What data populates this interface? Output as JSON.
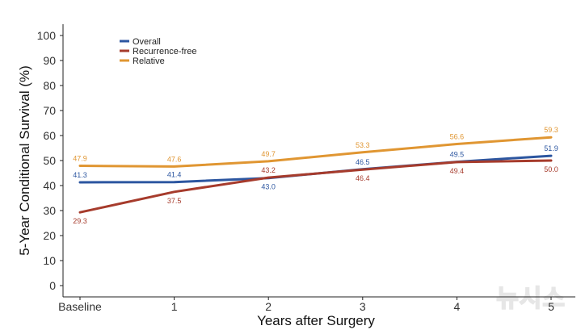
{
  "chart_data": {
    "type": "line",
    "categories": [
      "Baseline",
      "1",
      "2",
      "3",
      "4",
      "5"
    ],
    "series": [
      {
        "name": "Overall",
        "values": [
          41.3,
          41.4,
          43.0,
          46.5,
          49.5,
          51.9
        ],
        "labels": [
          "41.3",
          "41.4",
          "43.0",
          "46.5",
          "49.5",
          "51.9"
        ],
        "color": "#2c56a0"
      },
      {
        "name": "Recurrence-free",
        "values": [
          29.3,
          37.5,
          43.2,
          46.4,
          49.4,
          50.0
        ],
        "labels": [
          "29.3",
          "37.5",
          "43.2",
          "46.4",
          "49.4",
          "50.0"
        ],
        "color": "#a63b2c"
      },
      {
        "name": "Relative",
        "values": [
          47.9,
          47.6,
          49.7,
          53.3,
          56.6,
          59.3
        ],
        "labels": [
          "47.9",
          "47.6",
          "49.7",
          "53.3",
          "56.6",
          "59.3"
        ],
        "color": "#e09632"
      }
    ],
    "title": "",
    "xlabel": "Years after Surgery",
    "ylabel": "5-Year Conditional Survival (%)",
    "ylim": [
      0,
      100
    ],
    "yticks": [
      "0",
      "10",
      "20",
      "30",
      "40",
      "50",
      "60",
      "70",
      "80",
      "90",
      "100"
    ],
    "grid": false,
    "legend": "top-left"
  },
  "watermark": "뉴시스"
}
